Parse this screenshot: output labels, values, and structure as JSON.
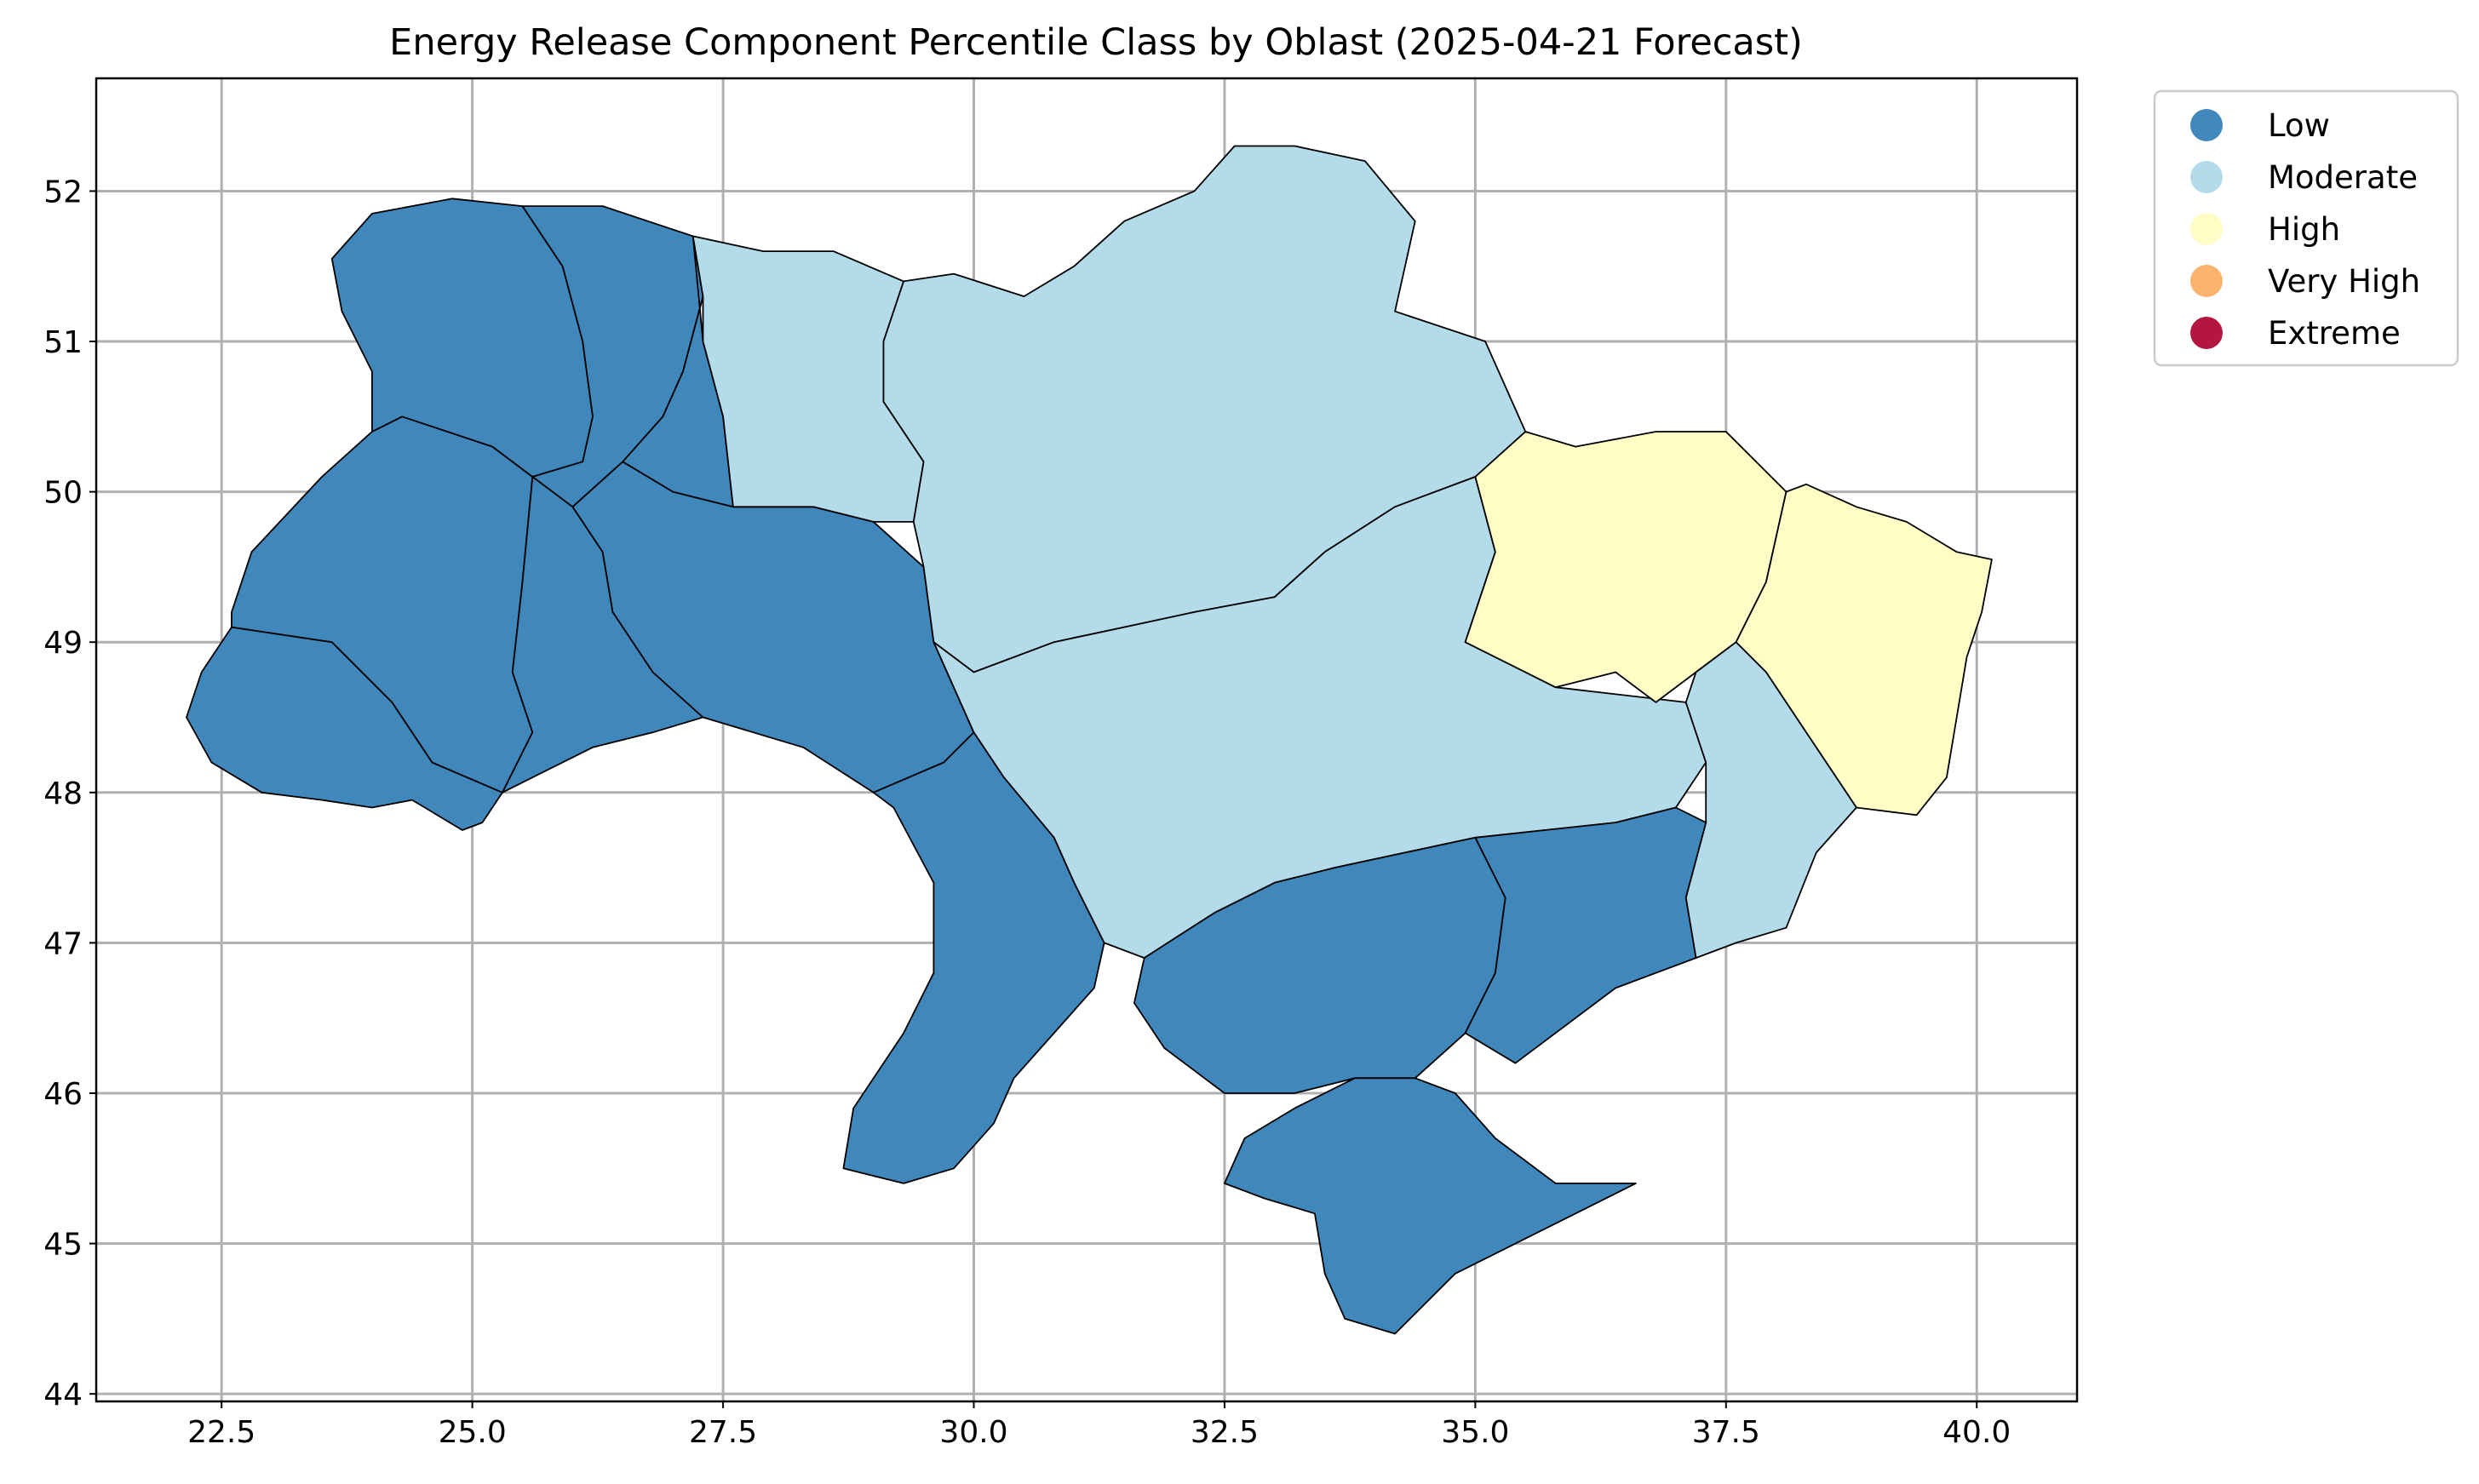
{
  "chart_data": {
    "type": "choropleth",
    "title": "Energy Release Component Percentile Class by Oblast (2025-04-21 Forecast)",
    "xlabel": "",
    "ylabel": "",
    "xlim": [
      21.25,
      41.0
    ],
    "ylim": [
      43.95,
      52.75
    ],
    "x_ticks": [
      "22.5",
      "25.0",
      "27.5",
      "30.0",
      "32.5",
      "35.0",
      "37.5",
      "40.0"
    ],
    "y_ticks": [
      "44",
      "45",
      "46",
      "47",
      "48",
      "49",
      "50",
      "51",
      "52"
    ],
    "grid": true,
    "legend_position": "outside-top-right",
    "legend": [
      {
        "label": "Low",
        "color": "#4087bc"
      },
      {
        "label": "Moderate",
        "color": "#b3dbe9"
      },
      {
        "label": "High",
        "color": "#fffcc5"
      },
      {
        "label": "Very High",
        "color": "#fbb36e"
      },
      {
        "label": "Extreme",
        "color": "#b3163f"
      }
    ]
  }
}
